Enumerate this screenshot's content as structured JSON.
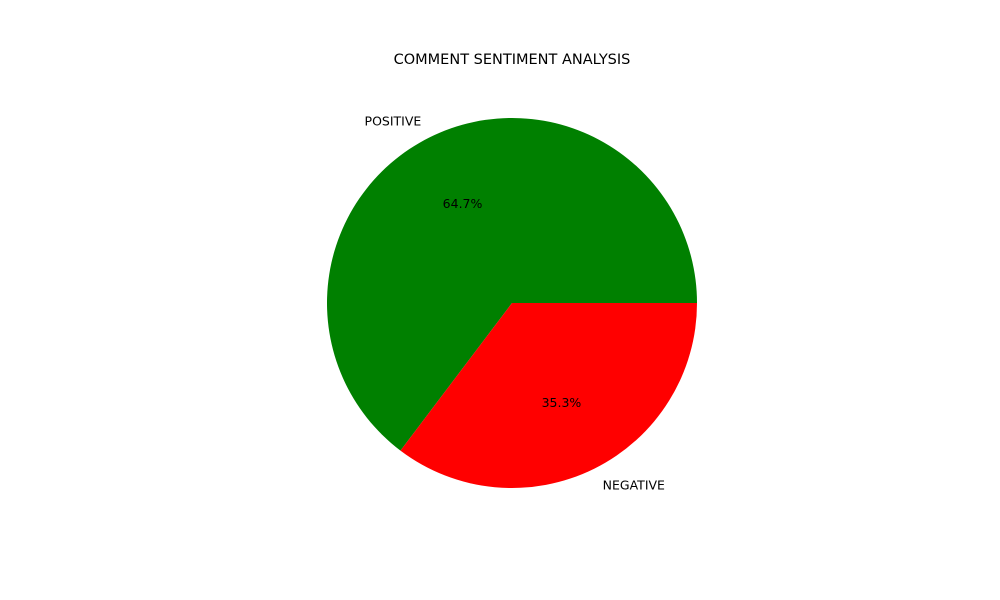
{
  "chart_data": {
    "type": "pie",
    "title": "COMMENT SENTIMENT ANALYSIS",
    "slices": [
      {
        "label": "POSITIVE",
        "value": 64.7,
        "pct_label": "64.7%",
        "color": "#008000"
      },
      {
        "label": "NEGATIVE",
        "value": 35.3,
        "pct_label": "35.3%",
        "color": "#ff0000"
      }
    ],
    "start_angle_deg": 0,
    "direction": "counterclockwise",
    "legend": "none"
  }
}
